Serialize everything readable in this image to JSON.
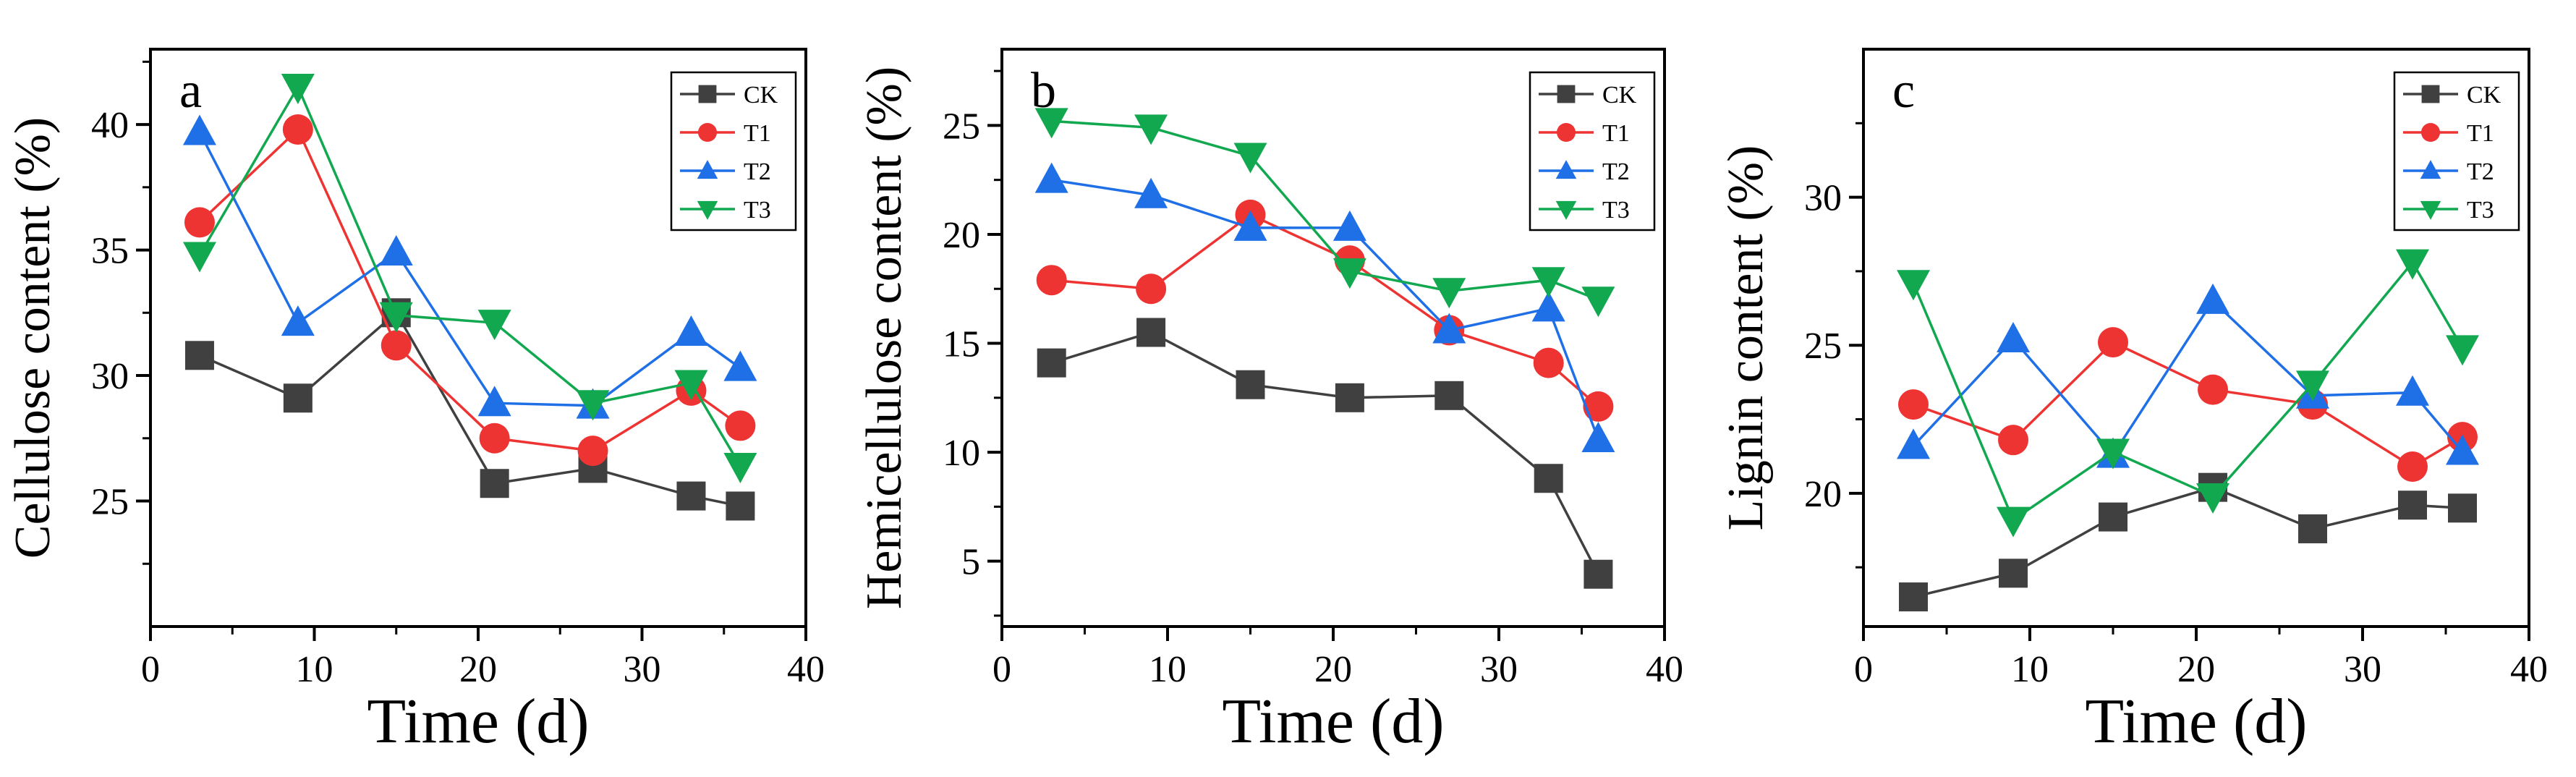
{
  "figure": {
    "series_styles": {
      "CK": {
        "color": "#404040",
        "marker": "square"
      },
      "T1": {
        "color": "#ee3333",
        "marker": "circle"
      },
      "T2": {
        "color": "#1f6fe6",
        "marker": "triangle-up"
      },
      "T3": {
        "color": "#12a850",
        "marker": "triangle-down"
      }
    }
  },
  "chart_data": [
    {
      "type": "line",
      "panel_label": "a",
      "xlabel": "Time (d)",
      "ylabel": "Cellulose content (%)",
      "xlim": [
        0,
        40
      ],
      "ylim": [
        20,
        43
      ],
      "xticks": [
        0,
        10,
        20,
        30,
        40
      ],
      "yticks": [
        25,
        30,
        35,
        40
      ],
      "x": [
        3,
        9,
        15,
        21,
        27,
        33,
        36
      ],
      "legend": {
        "position": "top-right",
        "entries": [
          "CK",
          "T1",
          "T2",
          "T3"
        ]
      },
      "series": [
        {
          "name": "CK",
          "values": [
            30.8,
            29.1,
            32.5,
            25.7,
            26.3,
            25.2,
            24.8
          ]
        },
        {
          "name": "T1",
          "values": [
            36.1,
            39.8,
            31.2,
            27.5,
            27.0,
            29.4,
            28.0
          ]
        },
        {
          "name": "T2",
          "values": [
            39.7,
            32.1,
            34.9,
            28.9,
            28.8,
            31.7,
            30.3
          ]
        },
        {
          "name": "T3",
          "values": [
            34.8,
            41.5,
            32.4,
            32.1,
            28.9,
            29.7,
            26.4
          ]
        }
      ]
    },
    {
      "type": "line",
      "panel_label": "b",
      "xlabel": "Time (d)",
      "ylabel": "Hemicellulose content (%)",
      "xlim": [
        0,
        40
      ],
      "ylim": [
        2,
        28.5
      ],
      "xticks": [
        0,
        10,
        20,
        30,
        40
      ],
      "yticks": [
        5,
        10,
        15,
        20,
        25
      ],
      "x": [
        3,
        9,
        15,
        21,
        27,
        33,
        36
      ],
      "legend": {
        "position": "top-right",
        "entries": [
          "CK",
          "T1",
          "T2",
          "T3"
        ]
      },
      "series": [
        {
          "name": "CK",
          "values": [
            14.1,
            15.5,
            13.1,
            12.5,
            12.6,
            8.8,
            4.4
          ]
        },
        {
          "name": "T1",
          "values": [
            17.9,
            17.5,
            20.9,
            18.8,
            15.6,
            14.1,
            12.1
          ]
        },
        {
          "name": "T2",
          "values": [
            22.5,
            21.8,
            20.3,
            20.3,
            15.6,
            16.6,
            10.6
          ]
        },
        {
          "name": "T3",
          "values": [
            25.2,
            24.9,
            23.6,
            18.3,
            17.4,
            17.9,
            17.0
          ]
        }
      ]
    },
    {
      "type": "line",
      "panel_label": "c",
      "xlabel": "Time (d)",
      "ylabel": "Lignin content (%)",
      "xlim": [
        0,
        40
      ],
      "ylim": [
        15.5,
        35
      ],
      "xticks": [
        0,
        10,
        20,
        30,
        40
      ],
      "yticks": [
        20,
        25,
        30
      ],
      "x": [
        3,
        9,
        15,
        21,
        27,
        33,
        36
      ],
      "legend": {
        "position": "top-right",
        "entries": [
          "CK",
          "T1",
          "T2",
          "T3"
        ]
      },
      "series": [
        {
          "name": "CK",
          "values": [
            16.5,
            17.3,
            19.2,
            20.2,
            18.8,
            19.6,
            19.5
          ]
        },
        {
          "name": "T1",
          "values": [
            23.0,
            21.8,
            25.1,
            23.5,
            23.0,
            20.9,
            21.9
          ]
        },
        {
          "name": "T2",
          "values": [
            21.6,
            25.2,
            21.3,
            26.5,
            23.3,
            23.4,
            21.4
          ]
        },
        {
          "name": "T3",
          "values": [
            27.1,
            19.1,
            21.4,
            19.9,
            23.7,
            27.8,
            24.9
          ]
        }
      ]
    }
  ]
}
